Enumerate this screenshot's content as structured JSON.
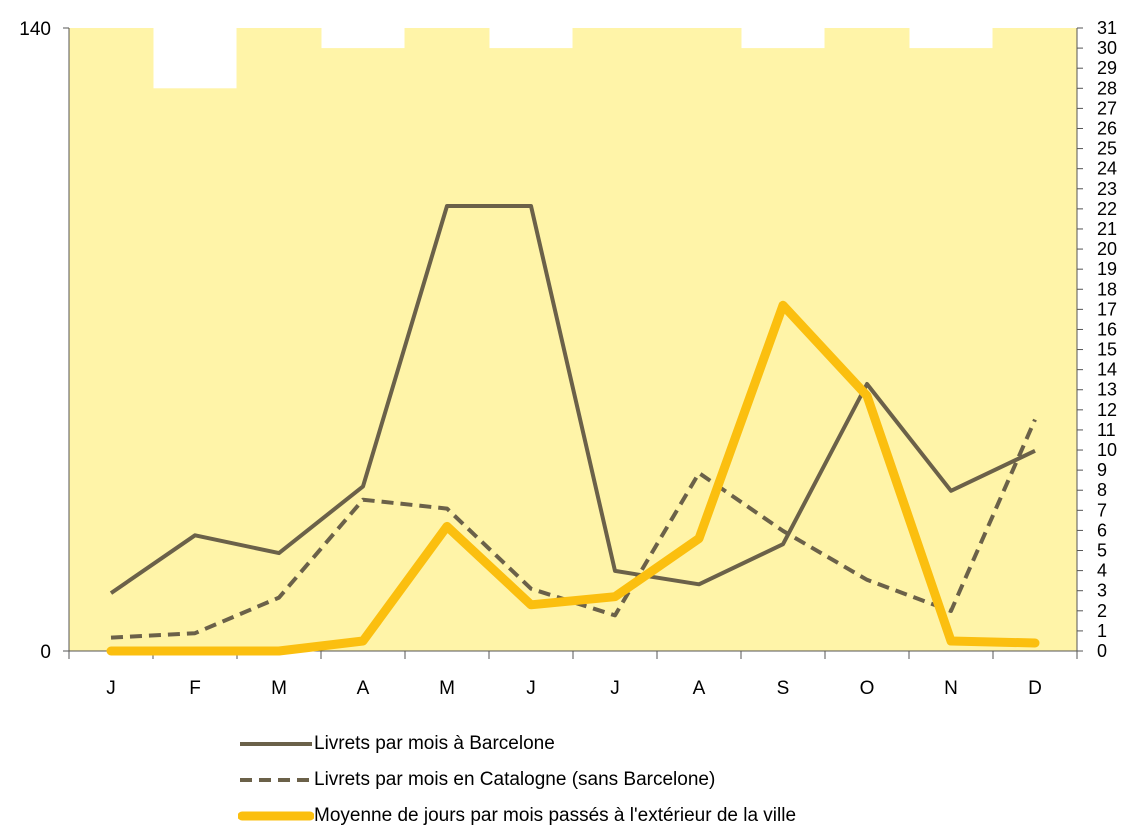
{
  "chart_data": {
    "type": "line",
    "categories": [
      "J",
      "F",
      "M",
      "A",
      "M",
      "J",
      "J",
      "A",
      "S",
      "O",
      "N",
      "D"
    ],
    "left_axis": {
      "ticks": [
        "0",
        "140"
      ],
      "ylim": [
        0,
        140
      ]
    },
    "right_axis": {
      "ticks": [
        "0",
        "1",
        "2",
        "3",
        "4",
        "5",
        "6",
        "7",
        "8",
        "9",
        "10",
        "11",
        "12",
        "13",
        "14",
        "15",
        "16",
        "17",
        "18",
        "19",
        "20",
        "21",
        "22",
        "23",
        "24",
        "25",
        "26",
        "27",
        "28",
        "29",
        "30",
        "31"
      ],
      "ylim": [
        0,
        31
      ]
    },
    "days_in_month": [
      31,
      28,
      31,
      30,
      31,
      30,
      31,
      31,
      30,
      31,
      30,
      31
    ],
    "series": [
      {
        "name": "Livrets par mois à Barcelone",
        "axis": "left",
        "style": "solid",
        "color": "#6b6149",
        "values": [
          13,
          26,
          22,
          37,
          100,
          100,
          18,
          15,
          24,
          60,
          36,
          45
        ]
      },
      {
        "name": "Livrets par mois en Catalogne (sans Barcelone)",
        "axis": "left",
        "style": "dashed",
        "color": "#6b6149",
        "values": [
          3,
          4,
          12,
          34,
          32,
          14,
          8,
          40,
          27,
          16,
          9,
          52
        ]
      },
      {
        "name": "Moyenne de jours par mois passés à l'extérieur de la ville",
        "axis": "right",
        "style": "thick",
        "color": "#fbbf0f",
        "values": [
          0,
          0,
          0,
          0.5,
          6.2,
          2.3,
          2.7,
          5.6,
          17.2,
          12.7,
          0.5,
          0.4
        ]
      }
    ],
    "plot_background": "#fff4a8",
    "grid": false,
    "legend_position": "bottom"
  }
}
